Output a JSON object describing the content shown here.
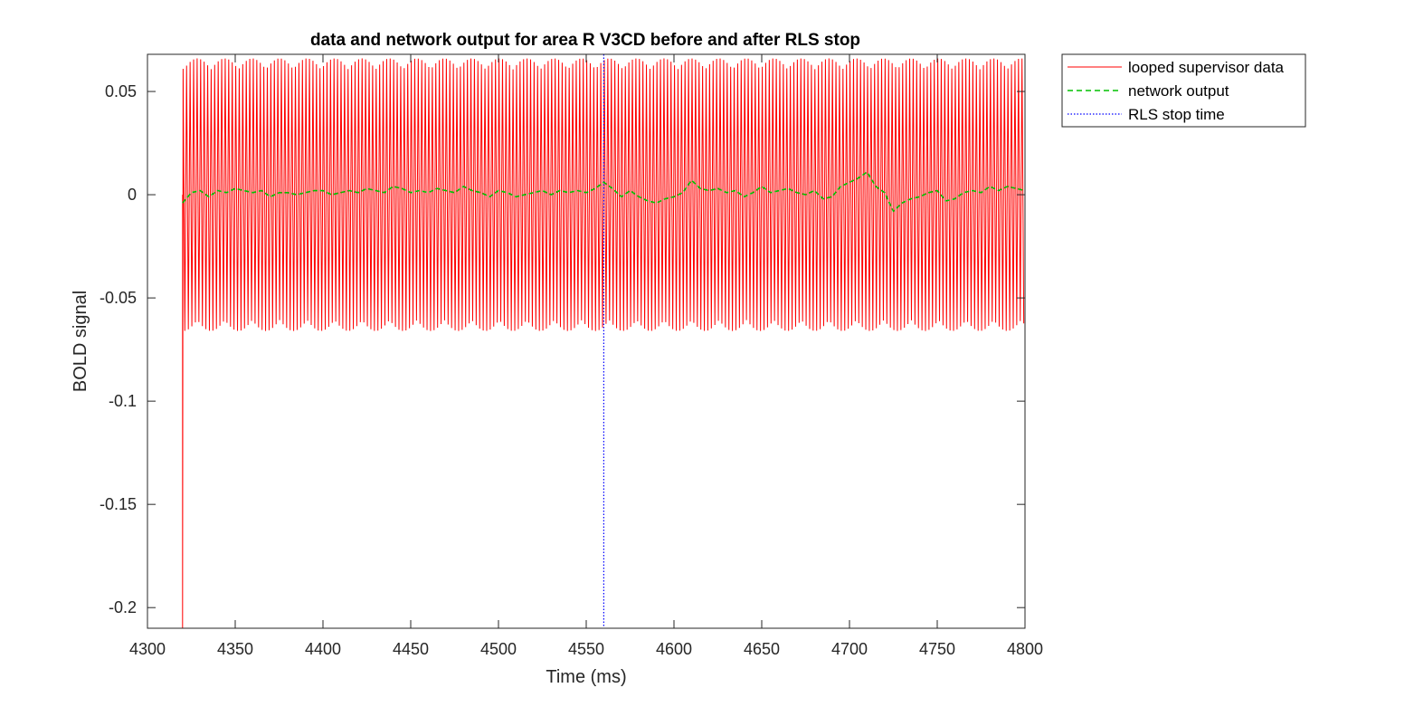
{
  "chart_data": {
    "type": "line",
    "title": "data and network output for area R V3CD before and after RLS stop",
    "xlabel": "Time (ms)",
    "ylabel": "BOLD signal",
    "xlim": [
      4300,
      4800
    ],
    "ylim": [
      -0.21,
      0.068
    ],
    "xticks": [
      4300,
      4350,
      4400,
      4450,
      4500,
      4550,
      4600,
      4650,
      4700,
      4750,
      4800
    ],
    "yticks": [
      -0.2,
      -0.15,
      -0.1,
      -0.05,
      0,
      0.05
    ],
    "xtick_labels": [
      "4300",
      "4350",
      "4400",
      "4450",
      "4500",
      "4550",
      "4600",
      "4650",
      "4700",
      "4750",
      "4800"
    ],
    "ytick_labels": [
      "-0.2",
      "-0.15",
      "-0.1",
      "-0.05",
      "0",
      "0.05"
    ],
    "grid": false,
    "legend_position": "outside top-right",
    "series": [
      {
        "name": "looped supervisor data",
        "color": "#ff0000",
        "style": "solid",
        "x_start": 4320,
        "x_end": 4800,
        "oscillation_period_ms": 2,
        "envelope_max": 0.066,
        "envelope_min": -0.066,
        "initial_min": -0.21
      },
      {
        "name": "network output",
        "color": "#00c000",
        "style": "dashed",
        "x": [
          4320,
          4325,
          4330,
          4335,
          4340,
          4345,
          4350,
          4355,
          4360,
          4365,
          4370,
          4375,
          4380,
          4385,
          4390,
          4395,
          4400,
          4405,
          4410,
          4415,
          4420,
          4425,
          4430,
          4435,
          4440,
          4445,
          4450,
          4455,
          4460,
          4465,
          4470,
          4475,
          4480,
          4485,
          4490,
          4495,
          4500,
          4505,
          4510,
          4515,
          4520,
          4525,
          4530,
          4535,
          4540,
          4545,
          4550,
          4555,
          4560,
          4565,
          4570,
          4575,
          4580,
          4585,
          4590,
          4595,
          4600,
          4605,
          4610,
          4615,
          4620,
          4625,
          4630,
          4635,
          4640,
          4645,
          4650,
          4655,
          4660,
          4665,
          4670,
          4675,
          4680,
          4685,
          4690,
          4695,
          4700,
          4705,
          4710,
          4715,
          4720,
          4725,
          4730,
          4735,
          4740,
          4745,
          4750,
          4755,
          4760,
          4765,
          4770,
          4775,
          4780,
          4785,
          4790,
          4795,
          4800
        ],
        "values": [
          -0.004,
          0.001,
          0.002,
          -0.001,
          0.002,
          0.001,
          0.003,
          0.002,
          0.001,
          0.002,
          -0.001,
          0.001,
          0.001,
          0.0,
          0.001,
          0.002,
          0.002,
          0.0,
          0.001,
          0.002,
          0.001,
          0.003,
          0.002,
          0.001,
          0.004,
          0.003,
          0.001,
          0.002,
          0.001,
          0.003,
          0.002,
          0.001,
          0.004,
          0.002,
          0.001,
          -0.001,
          0.002,
          0.001,
          -0.001,
          0.0,
          0.001,
          0.002,
          0.0,
          0.002,
          0.001,
          0.002,
          0.001,
          0.003,
          0.006,
          0.003,
          -0.001,
          0.002,
          -0.001,
          -0.003,
          -0.004,
          -0.002,
          -0.001,
          0.001,
          0.007,
          0.003,
          0.002,
          0.003,
          0.001,
          0.002,
          -0.001,
          0.001,
          0.004,
          0.001,
          0.002,
          0.003,
          0.001,
          0.0,
          0.002,
          -0.002,
          -0.001,
          0.004,
          0.006,
          0.008,
          0.011,
          0.004,
          0.001,
          -0.008,
          -0.004,
          -0.002,
          -0.001,
          0.001,
          0.002,
          -0.003,
          -0.002,
          0.001,
          0.002,
          0.001,
          0.004,
          0.002,
          0.004,
          0.003,
          0.002
        ]
      },
      {
        "name": "RLS stop time",
        "color": "#0000ff",
        "style": "dotted",
        "x_value": 4560
      }
    ]
  }
}
